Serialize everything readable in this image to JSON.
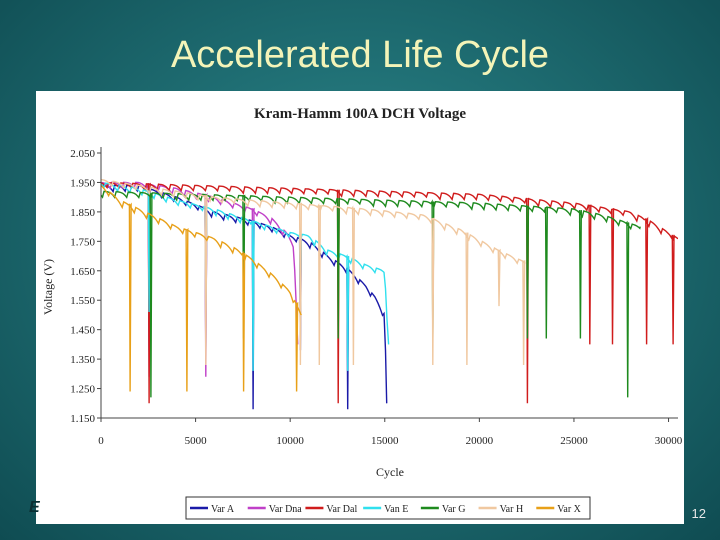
{
  "slide": {
    "title": "Accelerated Life Cycle",
    "page_number": "12",
    "corner_mark": "E"
  },
  "chart_data": {
    "type": "line",
    "title": "Kram-Hamm 100A DCH Voltage",
    "xlabel": "Cycle",
    "ylabel": "Voltage (V)",
    "xlim": [
      0,
      30500
    ],
    "ylim": [
      1.15,
      2.05
    ],
    "xticks": [
      0,
      5000,
      10000,
      15000,
      20000,
      25000,
      30000
    ],
    "yticks": [
      "2.050",
      "1.950",
      "1.850",
      "1.750",
      "1.650",
      "1.550",
      "1.450",
      "1.350",
      "1.250",
      "1.150"
    ],
    "grid": false,
    "legend": "bottom",
    "series": [
      {
        "name": "Var A",
        "color": "#1a1aa8",
        "x": [
          0,
          2000,
          4000,
          6000,
          8000,
          9000,
          10000,
          11000,
          12000,
          13000,
          14000,
          14500,
          15000,
          15100
        ],
        "y": [
          1.94,
          1.94,
          1.9,
          1.85,
          1.82,
          1.8,
          1.77,
          1.75,
          1.7,
          1.66,
          1.6,
          1.56,
          1.5,
          1.2
        ],
        "dips": [
          2500,
          5500,
          8000,
          10500,
          13000
        ]
      },
      {
        "name": "Var Dna",
        "color": "#c040c8",
        "x": [
          0,
          2000,
          4000,
          6000,
          8000,
          9000,
          9800,
          10200,
          10400
        ],
        "y": [
          1.95,
          1.95,
          1.93,
          1.9,
          1.86,
          1.83,
          1.78,
          1.74,
          1.4
        ],
        "dips": [
          2500,
          5500,
          8000
        ]
      },
      {
        "name": "Var Dal",
        "color": "#d01c1c",
        "x": [
          0,
          5000,
          10000,
          15000,
          20000,
          25000,
          28000,
          29000,
          30000,
          30500
        ],
        "y": [
          1.95,
          1.94,
          1.93,
          1.92,
          1.91,
          1.88,
          1.85,
          1.82,
          1.78,
          1.76
        ],
        "dips": [
          2500,
          12500,
          22500,
          25800,
          27000,
          28800,
          30200
        ]
      },
      {
        "name": "Van E",
        "color": "#30e0ee",
        "x": [
          0,
          2000,
          4000,
          6000,
          8000,
          9000,
          10000,
          11000,
          12000,
          13000,
          14000,
          15000,
          15200
        ],
        "y": [
          1.95,
          1.93,
          1.89,
          1.86,
          1.82,
          1.8,
          1.78,
          1.77,
          1.72,
          1.7,
          1.67,
          1.65,
          1.4
        ],
        "dips": [
          2500,
          5500,
          8000,
          10500,
          13000
        ]
      },
      {
        "name": "Var G",
        "color": "#1e8a1e",
        "x": [
          0,
          5000,
          10000,
          15000,
          20000,
          25000,
          26500,
          27500,
          28500
        ],
        "y": [
          1.92,
          1.91,
          1.9,
          1.89,
          1.88,
          1.86,
          1.84,
          1.82,
          1.8
        ],
        "dips": [
          2600,
          7500,
          12500,
          17500,
          22500,
          23500,
          25300,
          27800
        ]
      },
      {
        "name": "Var H",
        "color": "#f0c8a0",
        "x": [
          0,
          3000,
          6000,
          10000,
          14000,
          17000,
          19000,
          21000,
          22400
        ],
        "y": [
          1.96,
          1.93,
          1.9,
          1.88,
          1.86,
          1.84,
          1.79,
          1.72,
          1.68
        ],
        "dips": [
          5500,
          10500,
          11500,
          13300,
          17500,
          19300,
          21000,
          22300
        ]
      },
      {
        "name": "Var X",
        "color": "#e8a018",
        "x": [
          0,
          1000,
          2000,
          3000,
          4000,
          5000,
          6000,
          7000,
          8000,
          9000,
          10000,
          10600
        ],
        "y": [
          1.94,
          1.89,
          1.86,
          1.83,
          1.8,
          1.78,
          1.76,
          1.73,
          1.69,
          1.64,
          1.58,
          1.5
        ],
        "dips": [
          1500,
          4500,
          7500,
          10300
        ]
      }
    ]
  }
}
